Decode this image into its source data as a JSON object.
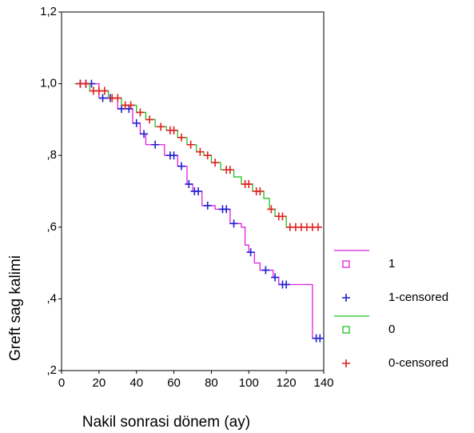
{
  "chart_data": {
    "type": "kaplan-meier",
    "x_label": "Nakil sonrasi dönem (ay)",
    "y_label": "Greft sag kalimi",
    "xlim": [
      0,
      140
    ],
    "xticks": [
      0,
      20,
      40,
      60,
      80,
      100,
      120,
      140
    ],
    "ylim": [
      0.2,
      1.2
    ],
    "yticks": [
      {
        "value": 0.2,
        "label": ",2"
      },
      {
        "value": 0.4,
        "label": ",4"
      },
      {
        "value": 0.6,
        "label": ",6"
      },
      {
        "value": 0.8,
        "label": ",8"
      },
      {
        "value": 1.0,
        "label": "1,0"
      },
      {
        "value": 1.2,
        "label": "1,2"
      }
    ],
    "series": [
      {
        "name": "1",
        "style": "step",
        "color": "#e020e0",
        "x": [
          7,
          20,
          30,
          38,
          42,
          45,
          55,
          62,
          67,
          70,
          75,
          82,
          90,
          96,
          98,
          100,
          103,
          106,
          113,
          116,
          134,
          138
        ],
        "values": [
          1.0,
          0.96,
          0.93,
          0.89,
          0.86,
          0.83,
          0.8,
          0.77,
          0.72,
          0.7,
          0.66,
          0.65,
          0.61,
          0.6,
          0.55,
          0.53,
          0.5,
          0.48,
          0.46,
          0.44,
          0.29,
          0.29
        ]
      },
      {
        "name": "1-censored",
        "style": "censored",
        "color": "#2020d0",
        "x": [
          10,
          13,
          16,
          22,
          26,
          32,
          36,
          40,
          44,
          50,
          58,
          60,
          64,
          68,
          71,
          73,
          78,
          86,
          88,
          92,
          101,
          109,
          114,
          118,
          120,
          136,
          138
        ],
        "values": [
          1.0,
          1.0,
          1.0,
          0.96,
          0.96,
          0.93,
          0.93,
          0.89,
          0.86,
          0.83,
          0.8,
          0.8,
          0.77,
          0.72,
          0.7,
          0.7,
          0.66,
          0.65,
          0.65,
          0.61,
          0.53,
          0.48,
          0.46,
          0.44,
          0.44,
          0.29,
          0.29
        ]
      },
      {
        "name": "0",
        "style": "step",
        "color": "#20c020",
        "x": [
          7,
          15,
          25,
          32,
          40,
          45,
          50,
          56,
          62,
          67,
          72,
          76,
          80,
          85,
          92,
          96,
          102,
          108,
          111,
          114,
          120,
          138
        ],
        "values": [
          1.0,
          0.98,
          0.96,
          0.94,
          0.92,
          0.9,
          0.88,
          0.87,
          0.85,
          0.83,
          0.81,
          0.8,
          0.78,
          0.76,
          0.74,
          0.72,
          0.7,
          0.68,
          0.65,
          0.63,
          0.6,
          0.6
        ]
      },
      {
        "name": "0-censored",
        "style": "censored",
        "color": "#e02020",
        "x": [
          10,
          13,
          17,
          20,
          23,
          27,
          30,
          34,
          37,
          42,
          47,
          53,
          58,
          60,
          64,
          69,
          74,
          78,
          82,
          88,
          90,
          98,
          100,
          104,
          106,
          112,
          116,
          118,
          122,
          125,
          128,
          131,
          134,
          137
        ],
        "values": [
          1.0,
          1.0,
          0.98,
          0.98,
          0.98,
          0.96,
          0.96,
          0.94,
          0.94,
          0.92,
          0.9,
          0.88,
          0.87,
          0.87,
          0.85,
          0.83,
          0.81,
          0.8,
          0.78,
          0.76,
          0.76,
          0.72,
          0.72,
          0.7,
          0.7,
          0.65,
          0.63,
          0.63,
          0.6,
          0.6,
          0.6,
          0.6,
          0.6,
          0.6
        ]
      }
    ]
  }
}
